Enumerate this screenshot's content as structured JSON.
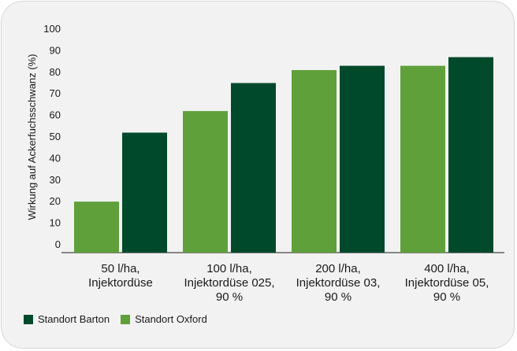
{
  "chart_data": {
    "type": "bar",
    "title": "",
    "xlabel": "",
    "ylabel": "Wirkung auf Ackerfuchsschwanz (%)",
    "ylim": [
      0,
      100
    ],
    "yticks": [
      "0",
      "10",
      "20",
      "30",
      "40",
      "50",
      "60",
      "70",
      "80",
      "90",
      "100"
    ],
    "grid": false,
    "legend_position": "bottom-left",
    "categories": [
      [
        "50 l/ha,",
        "Injektordüse"
      ],
      [
        "100 l/ha,",
        "Injektordüse 025,",
        "90 %"
      ],
      [
        "200 l/ha,",
        "Injektordüse 03,",
        "90 %"
      ],
      [
        "400 l/ha,",
        "Injektordüse 05,",
        "90 %"
      ]
    ],
    "series": [
      {
        "name": "Standort Oxford",
        "color": "#5fa03a",
        "values": [
          20,
          62,
          81,
          83
        ]
      },
      {
        "name": "Standort Barton",
        "color": "#004a2b",
        "values": [
          52,
          75,
          83,
          87
        ]
      }
    ],
    "legend": [
      {
        "name": "Standort Barton",
        "color": "#004a2b"
      },
      {
        "name": "Standort Oxford",
        "color": "#5fa03a"
      }
    ]
  }
}
